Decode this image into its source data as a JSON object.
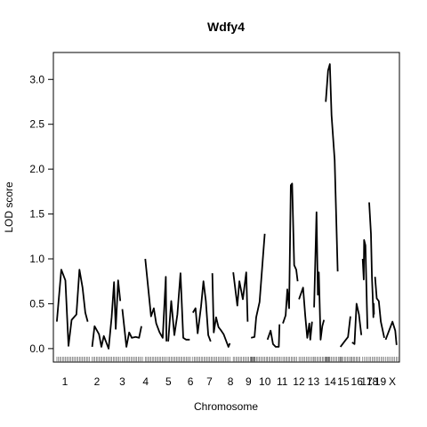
{
  "chart_data": {
    "type": "line",
    "title": "Wdfy4",
    "xlabel": "Chromosome",
    "ylabel": "LOD score",
    "ylim": [
      -0.15,
      3.3
    ],
    "xlim": [
      0,
      100
    ],
    "yticks": [
      0.0,
      0.5,
      1.0,
      1.5,
      2.0,
      2.5,
      3.0
    ],
    "ytick_labels": [
      "0.0",
      "0.5",
      "1.0",
      "1.5",
      "2.0",
      "2.5",
      "3.0"
    ],
    "line_color": "#000000",
    "chromosomes": [
      {
        "label": "1",
        "start": 0.5,
        "end": 10.0,
        "points": [
          [
            0.5,
            0.3
          ],
          [
            1.8,
            0.88
          ],
          [
            3.0,
            0.76
          ],
          [
            3.9,
            0.03
          ],
          [
            4.8,
            0.32
          ],
          [
            6.2,
            0.38
          ],
          [
            7.1,
            0.88
          ],
          [
            8.0,
            0.68
          ],
          [
            8.8,
            0.4
          ],
          [
            9.5,
            0.3
          ]
        ]
      },
      {
        "label": "2",
        "start": 10.8,
        "end": 19.0,
        "points": [
          [
            10.8,
            0.02
          ],
          [
            11.5,
            0.25
          ],
          [
            12.8,
            0.16
          ],
          [
            13.5,
            0.02
          ],
          [
            14.2,
            0.14
          ],
          [
            15.0,
            0.06
          ],
          [
            15.6,
            0.0
          ],
          [
            16.5,
            0.35
          ],
          [
            17.2,
            0.74
          ],
          [
            17.7,
            0.22
          ],
          [
            18.4,
            0.76
          ],
          [
            19.0,
            0.53
          ]
        ]
      },
      {
        "label": "3",
        "start": 19.6,
        "end": 25.5,
        "points": [
          [
            19.6,
            0.44
          ],
          [
            20.8,
            0.02
          ],
          [
            21.6,
            0.18
          ],
          [
            22.4,
            0.12
          ],
          [
            23.5,
            0.13
          ],
          [
            24.5,
            0.12
          ],
          [
            25.2,
            0.25
          ]
        ]
      },
      {
        "label": "4",
        "start": 26.3,
        "end": 32.5,
        "points": [
          [
            26.3,
            1.0
          ],
          [
            28.0,
            0.36
          ],
          [
            28.8,
            0.45
          ],
          [
            29.5,
            0.28
          ],
          [
            30.5,
            0.18
          ],
          [
            31.4,
            0.12
          ],
          [
            32.3,
            0.8
          ],
          [
            32.5,
            0.08
          ]
        ]
      },
      {
        "label": "5",
        "start": 33.0,
        "end": 39.5,
        "points": [
          [
            33.0,
            0.08
          ],
          [
            33.9,
            0.53
          ],
          [
            34.8,
            0.15
          ],
          [
            35.7,
            0.38
          ],
          [
            36.6,
            0.84
          ],
          [
            37.4,
            0.12
          ],
          [
            38.2,
            0.1
          ],
          [
            39.3,
            0.1
          ]
        ]
      },
      {
        "label": "6",
        "start": 40.2,
        "end": 45.5,
        "points": [
          [
            40.2,
            0.4
          ],
          [
            41.0,
            0.45
          ],
          [
            41.6,
            0.17
          ],
          [
            42.6,
            0.47
          ],
          [
            43.3,
            0.75
          ],
          [
            44.0,
            0.53
          ],
          [
            44.7,
            0.15
          ],
          [
            45.4,
            0.08
          ]
        ]
      },
      {
        "label": "7",
        "start": 45.9,
        "end": 51.0,
        "points": [
          [
            45.9,
            0.84
          ],
          [
            46.3,
            0.18
          ],
          [
            47.0,
            0.35
          ],
          [
            47.7,
            0.24
          ],
          [
            48.5,
            0.2
          ],
          [
            49.2,
            0.16
          ],
          [
            49.8,
            0.1
          ],
          [
            50.6,
            0.02
          ],
          [
            51.0,
            0.06
          ]
        ]
      },
      {
        "label": "8",
        "start": 52.0,
        "end": 58.2,
        "points": [
          [
            52.0,
            0.85
          ],
          [
            53.2,
            0.48
          ],
          [
            53.8,
            0.75
          ],
          [
            54.8,
            0.55
          ],
          [
            55.8,
            0.85
          ],
          [
            56.2,
            0.3
          ]
        ]
      },
      {
        "label": "9",
        "start": 57.2,
        "end": 62.0,
        "points": [
          [
            57.2,
            0.12
          ],
          [
            58.2,
            0.13
          ],
          [
            58.7,
            0.35
          ],
          [
            59.7,
            0.52
          ],
          [
            60.6,
            0.98
          ],
          [
            61.2,
            1.28
          ]
        ]
      },
      {
        "label": "10",
        "start": 62.0,
        "end": 66.0,
        "points": [
          [
            62.0,
            0.1
          ],
          [
            62.9,
            0.2
          ],
          [
            63.6,
            0.05
          ],
          [
            64.4,
            0.02
          ],
          [
            65.3,
            0.02
          ],
          [
            65.5,
            0.27
          ]
        ]
      },
      {
        "label": "11",
        "start": 66.5,
        "end": 70.5,
        "points": [
          [
            66.5,
            0.28
          ],
          [
            67.3,
            0.37
          ],
          [
            67.8,
            0.66
          ],
          [
            68.3,
            0.45
          ],
          [
            68.8,
            1.82
          ],
          [
            69.2,
            1.84
          ],
          [
            69.8,
            0.93
          ],
          [
            70.4,
            0.88
          ],
          [
            70.8,
            0.75
          ]
        ]
      },
      {
        "label": "12",
        "start": 71.2,
        "end": 75.5,
        "points": [
          [
            71.2,
            0.55
          ],
          [
            72.4,
            0.68
          ],
          [
            73.0,
            0.37
          ],
          [
            73.6,
            0.12
          ],
          [
            74.2,
            0.28
          ],
          [
            74.5,
            0.1
          ],
          [
            75.0,
            0.3
          ]
        ]
      },
      {
        "label": "13",
        "start": 75.6,
        "end": 80.0,
        "points": [
          [
            75.6,
            0.46
          ],
          [
            76.3,
            1.52
          ],
          [
            76.7,
            0.6
          ],
          [
            77.0,
            0.85
          ],
          [
            77.5,
            0.1
          ],
          [
            78.0,
            0.25
          ],
          [
            78.5,
            0.32
          ]
        ]
      },
      {
        "label": "14",
        "start": 79.0,
        "end": 83.5,
        "points": [
          [
            79.0,
            2.75
          ],
          [
            79.7,
            3.1
          ],
          [
            80.2,
            3.17
          ],
          [
            80.7,
            2.6
          ],
          [
            81.6,
            2.1
          ],
          [
            82.5,
            0.86
          ]
        ]
      },
      {
        "label": "15",
        "start": 83.3,
        "end": 86.5,
        "points": [
          [
            83.3,
            0.02
          ],
          [
            84.5,
            0.08
          ],
          [
            85.5,
            0.13
          ],
          [
            86.2,
            0.36
          ]
        ]
      },
      {
        "label": "16",
        "start": 86.7,
        "end": 89.0,
        "points": [
          [
            86.7,
            0.07
          ],
          [
            87.4,
            0.05
          ],
          [
            88.0,
            0.5
          ],
          [
            88.7,
            0.38
          ],
          [
            89.4,
            0.15
          ]
        ]
      },
      {
        "label": "17",
        "start": 89.8,
        "end": 91.2,
        "points": [
          [
            89.8,
            1.0
          ],
          [
            90.1,
            0.77
          ],
          [
            90.2,
            1.21
          ],
          [
            90.6,
            1.15
          ],
          [
            91.0,
            0.48
          ],
          [
            91.2,
            0.22
          ]
        ]
      },
      {
        "label": "18",
        "start": 91.7,
        "end": 93.0,
        "points": [
          [
            91.7,
            1.63
          ],
          [
            92.2,
            1.28
          ],
          [
            92.5,
            0.8
          ],
          [
            92.7,
            0.6
          ],
          [
            92.9,
            0.35
          ],
          [
            93.0,
            0.5
          ],
          [
            93.1,
            0.38
          ]
        ]
      },
      {
        "label": "19",
        "start": 93.4,
        "end": 96.0,
        "points": [
          [
            93.4,
            0.8
          ],
          [
            93.9,
            0.56
          ],
          [
            94.5,
            0.53
          ],
          [
            95.1,
            0.3
          ],
          [
            96.1,
            0.12
          ]
        ]
      },
      {
        "label": "X",
        "start": 96.5,
        "end": 100.0,
        "points": [
          [
            96.5,
            0.1
          ],
          [
            98.5,
            0.3
          ],
          [
            99.3,
            0.2
          ],
          [
            99.7,
            0.04
          ]
        ]
      }
    ],
    "xtick_labels": [
      {
        "label": "1",
        "x": 5.2
      },
      {
        "label": "2",
        "x": 14.8
      },
      {
        "label": "3",
        "x": 22.4
      },
      {
        "label": "4",
        "x": 29.4
      },
      {
        "label": "5",
        "x": 36.2
      },
      {
        "label": "6",
        "x": 42.8
      },
      {
        "label": "7",
        "x": 48.5
      },
      {
        "label": "8",
        "x": 54.8
      },
      {
        "label": "9",
        "x": 60.2
      },
      {
        "label": "10",
        "x": 65.1
      },
      {
        "label": "11",
        "x": 70.3
      },
      {
        "label": "12",
        "x": 75.3
      },
      {
        "label": "13",
        "x": 79.7
      },
      {
        "label": "14",
        "x": 84.7
      },
      {
        "label": "15",
        "x": 88.6
      },
      {
        "label": "16",
        "x": 92.7
      },
      {
        "label": "17",
        "x": 95.6
      },
      {
        "label": "18",
        "x": 97.3
      },
      {
        "label": "19",
        "x": 99.7
      },
      {
        "label": "X",
        "x": 103.3
      }
    ]
  }
}
